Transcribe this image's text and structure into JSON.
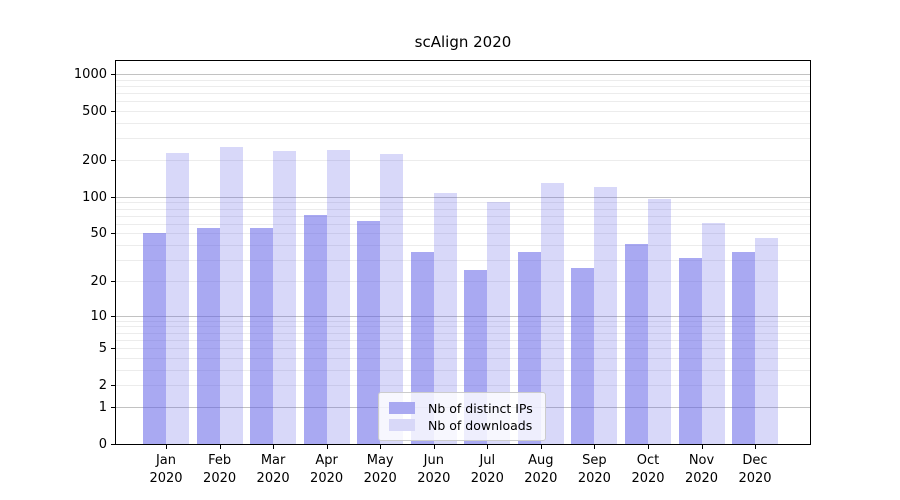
{
  "figure": {
    "background": "#ffffff"
  },
  "chart_data": {
    "type": "bar",
    "title": "scAlign 2020",
    "categories": [
      "Jan 2020",
      "Feb 2020",
      "Mar 2020",
      "Apr 2020",
      "May 2020",
      "Jun 2020",
      "Jul 2020",
      "Aug 2020",
      "Sep 2020",
      "Oct 2020",
      "Nov 2020",
      "Dec 2020"
    ],
    "x_tick_months": [
      "Jan",
      "Feb",
      "Mar",
      "Apr",
      "May",
      "Jun",
      "Jul",
      "Aug",
      "Sep",
      "Oct",
      "Nov",
      "Dec"
    ],
    "x_tick_year": "2020",
    "series": [
      {
        "name": "Nb of distinct IPs",
        "color_hex": "#a9a9f1",
        "color_rgba": "rgba(90,90,230,0.52)",
        "values": [
          50,
          55,
          56,
          71,
          63,
          35,
          25,
          35,
          26,
          41,
          31,
          35
        ]
      },
      {
        "name": "Nb of downloads",
        "color_hex": "#d8d8f8",
        "color_rgba": "rgba(90,90,230,0.24)",
        "values": [
          230,
          255,
          236,
          242,
          226,
          107,
          91,
          130,
          120,
          96,
          61,
          46
        ]
      }
    ],
    "xlabel": "",
    "ylabel": "",
    "yscale": "log1p",
    "yticks": [
      0,
      1,
      2,
      5,
      10,
      20,
      50,
      100,
      200,
      500,
      1000
    ],
    "ylim": [
      0,
      1280
    ],
    "grid": true,
    "grid_major_values": [
      1,
      10,
      100,
      1000
    ],
    "legend_position": "inside-bottom-center",
    "legend": {
      "items": [
        "Nb of distinct IPs",
        "Nb of downloads"
      ]
    }
  }
}
